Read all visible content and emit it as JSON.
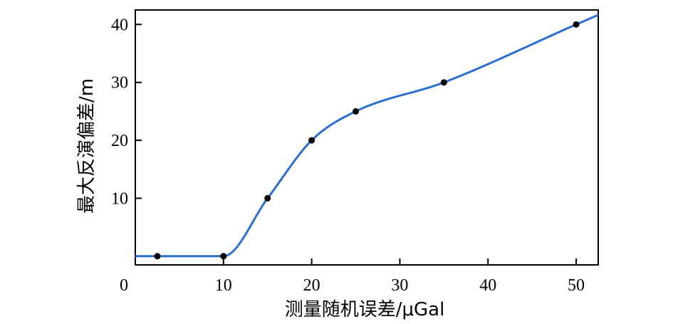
{
  "chart_data": {
    "type": "line",
    "title": "",
    "xlabel": "测量随机误差/μGal",
    "ylabel": "最大反演偏差/m",
    "xlim": [
      0,
      52.5
    ],
    "ylim": [
      -1.5,
      42.5
    ],
    "x_ticks": [
      0,
      10,
      20,
      30,
      40,
      50
    ],
    "x_tick_labels": [
      "0",
      "10",
      "20",
      "30",
      "40",
      "50"
    ],
    "y_ticks": [
      10,
      20,
      30,
      40
    ],
    "y_tick_labels": [
      "10",
      "20",
      "30",
      "40"
    ],
    "grid": false,
    "series": [
      {
        "name": "",
        "color": "#2a6fd0",
        "marker_color": "#000000",
        "x": [
          2.5,
          5,
          10,
          15,
          20,
          25,
          35,
          50
        ],
        "y": [
          0,
          0,
          0,
          10,
          20,
          25,
          30,
          40
        ],
        "extend_to_x": 52.5,
        "marker_x": [
          2.5,
          10,
          15,
          20,
          25,
          35,
          50
        ],
        "marker_y": [
          0,
          0,
          10,
          20,
          25,
          30,
          40
        ]
      }
    ]
  }
}
